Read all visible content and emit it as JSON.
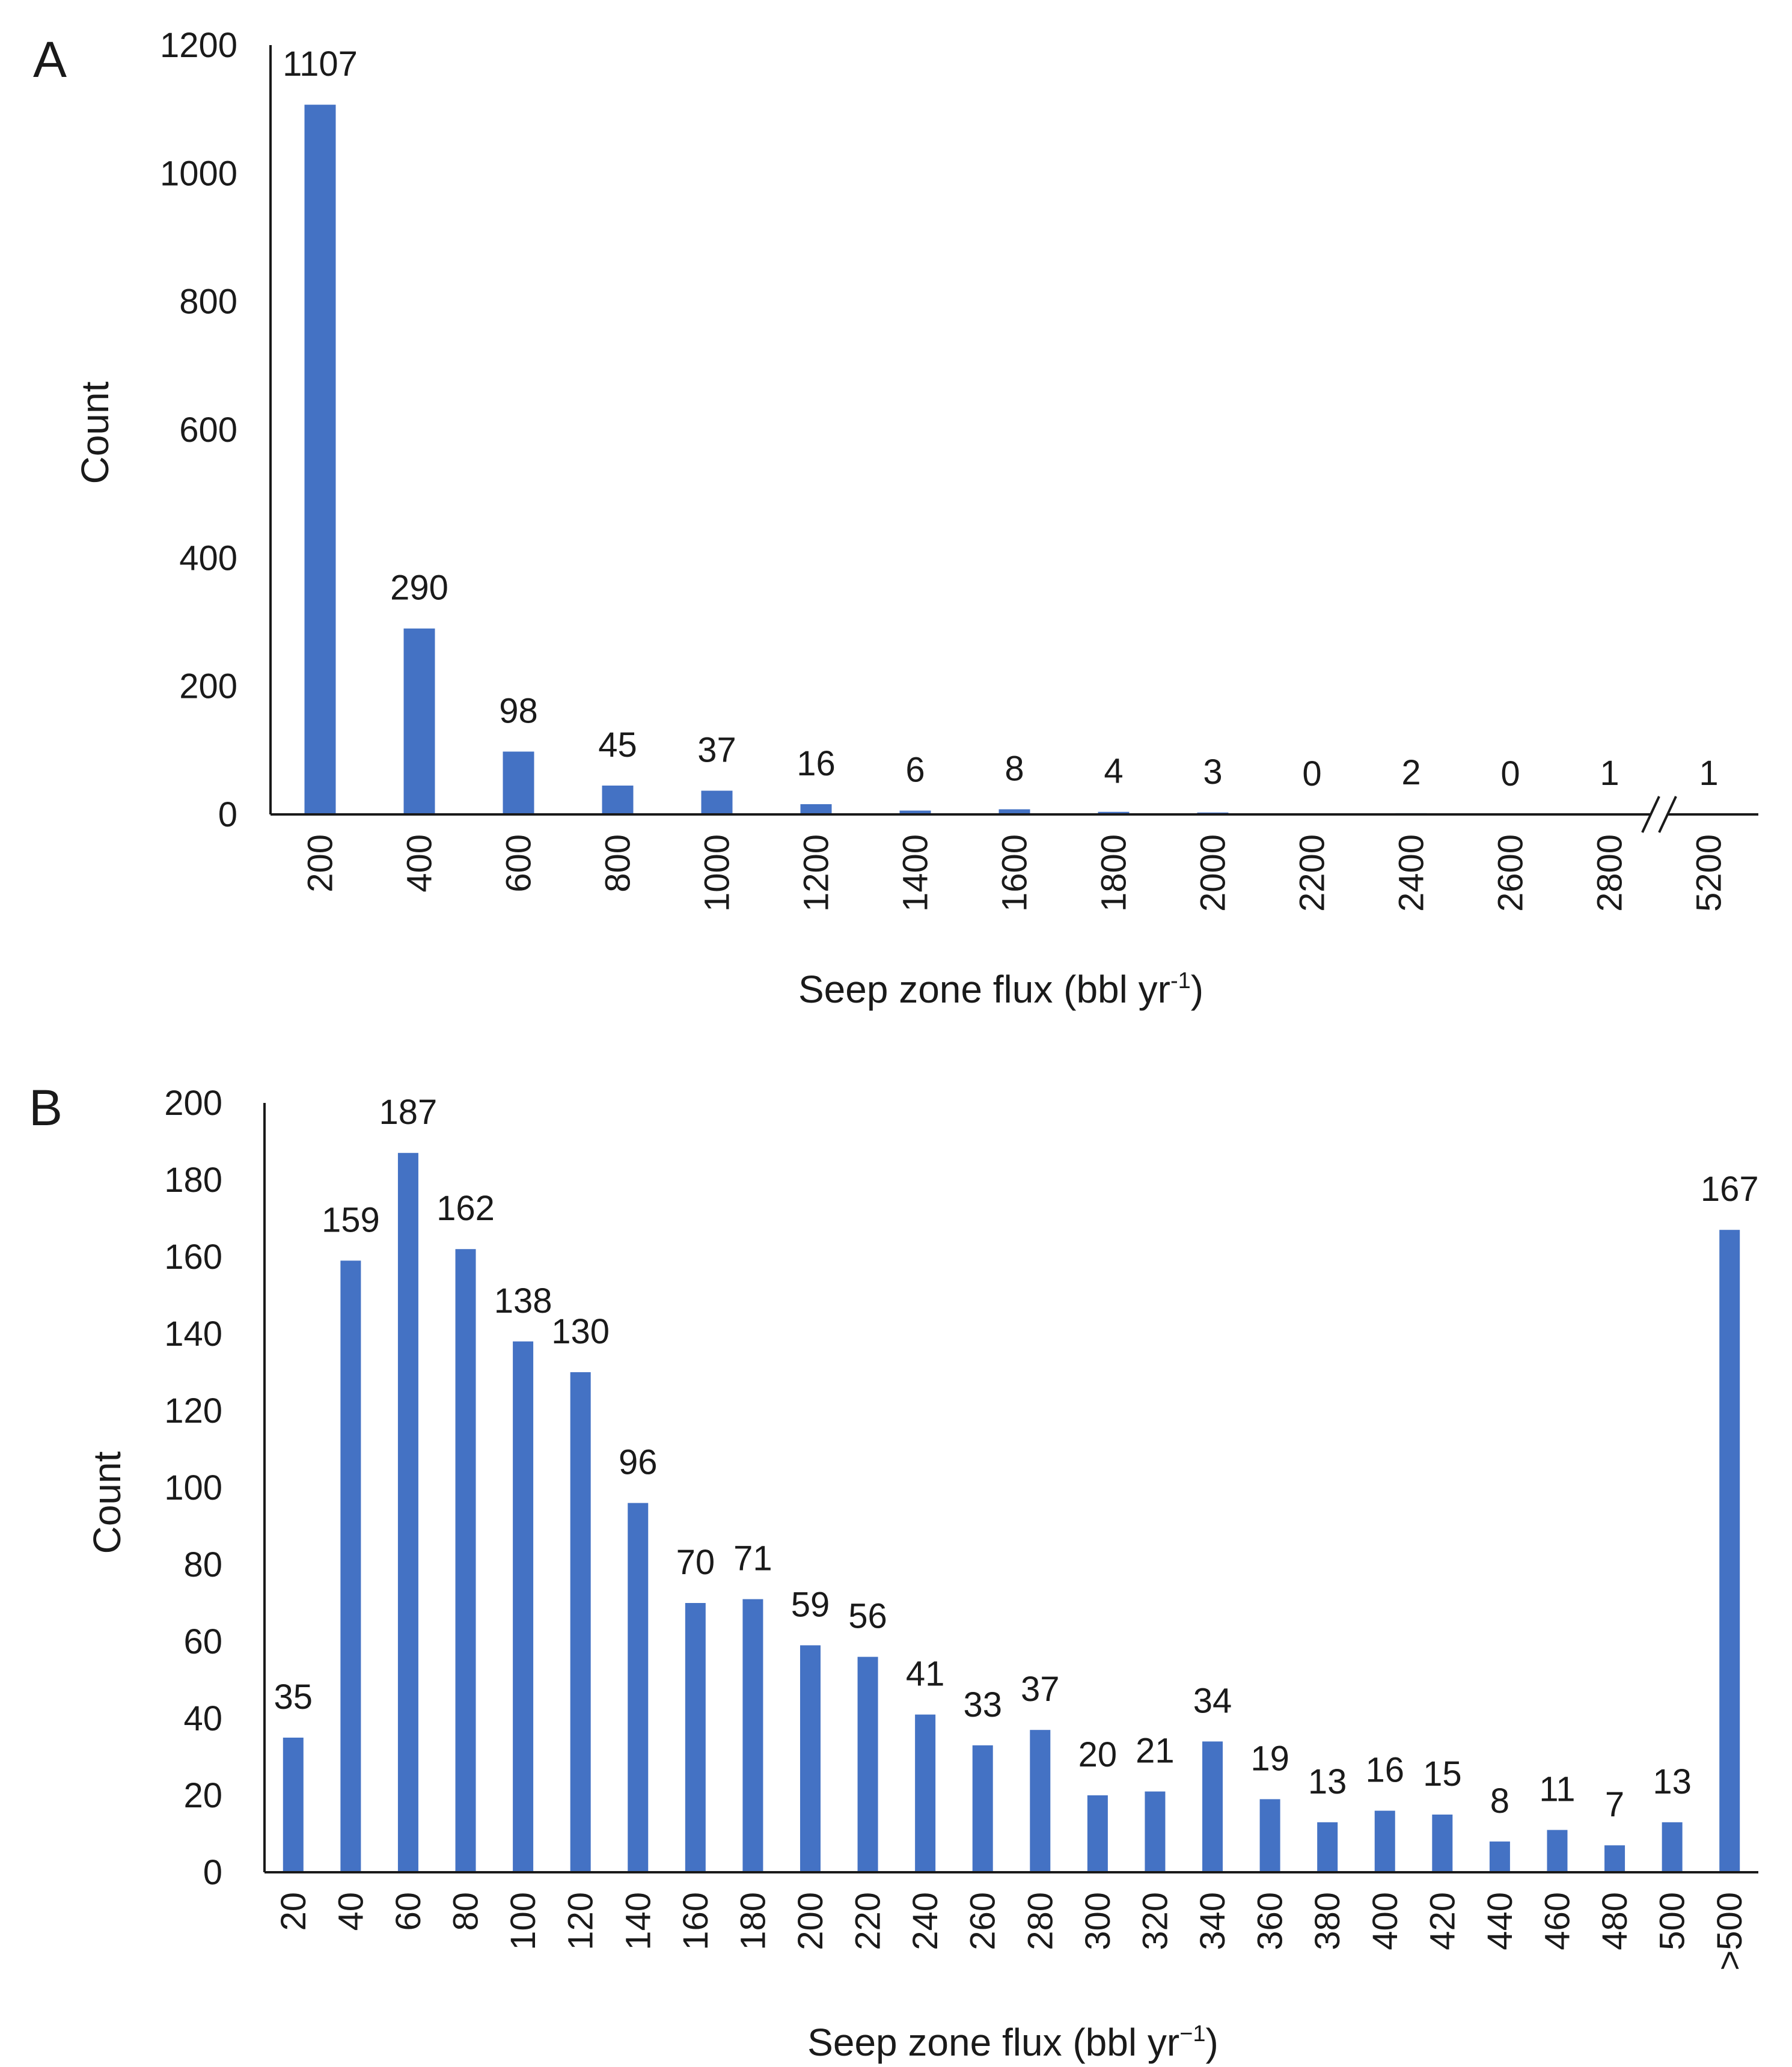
{
  "chart_data": [
    {
      "panel_label": "A",
      "type": "bar",
      "title": "",
      "xlabel": "Seep zone flux (bbl yr",
      "xlabel_superscript": "-1",
      "xlabel_suffix": ")",
      "ylabel": "Count",
      "ylim": [
        0,
        1200
      ],
      "yticks": [
        0,
        200,
        400,
        600,
        800,
        1000,
        1200
      ],
      "axis_break_before_last": true,
      "axis_break_mark": "//",
      "bar_color": "#4472c4",
      "categories": [
        "200",
        "400",
        "600",
        "800",
        "1000",
        "1200",
        "1400",
        "1600",
        "1800",
        "2000",
        "2200",
        "2400",
        "2600",
        "2800",
        "5200"
      ],
      "values": [
        1107,
        290,
        98,
        45,
        37,
        16,
        6,
        8,
        4,
        3,
        0,
        2,
        0,
        1,
        1
      ],
      "data_labels": [
        "1107",
        "290",
        "98",
        "45",
        "37",
        "16",
        "6",
        "8",
        "4",
        "3",
        "0",
        "2",
        "0",
        "1",
        "1"
      ],
      "grid": false
    },
    {
      "panel_label": "B",
      "type": "bar",
      "title": "",
      "xlabel": "Seep zone flux (bbl yr",
      "xlabel_superscript": "−1",
      "xlabel_suffix": ")",
      "ylabel": "Count",
      "ylim": [
        0,
        200
      ],
      "yticks": [
        0,
        20,
        40,
        60,
        80,
        100,
        120,
        140,
        160,
        180,
        200
      ],
      "bar_color": "#4472c4",
      "categories": [
        "20",
        "40",
        "60",
        "80",
        "100",
        "120",
        "140",
        "160",
        "180",
        "200",
        "220",
        "240",
        "260",
        "280",
        "300",
        "320",
        "340",
        "360",
        "380",
        "400",
        "420",
        "440",
        "460",
        "480",
        "500",
        ">500"
      ],
      "values": [
        35,
        159,
        187,
        162,
        138,
        130,
        96,
        70,
        71,
        59,
        56,
        41,
        33,
        37,
        20,
        21,
        34,
        19,
        13,
        16,
        15,
        8,
        11,
        7,
        13,
        167
      ],
      "data_labels": [
        "35",
        "159",
        "187",
        "162",
        "138",
        "130",
        "96",
        "70",
        "71",
        "59",
        "56",
        "41",
        "33",
        "37",
        "20",
        "21",
        "34",
        "19",
        "13",
        "16",
        "15",
        "8",
        "11",
        "7",
        "13",
        "167"
      ],
      "grid": false
    }
  ]
}
